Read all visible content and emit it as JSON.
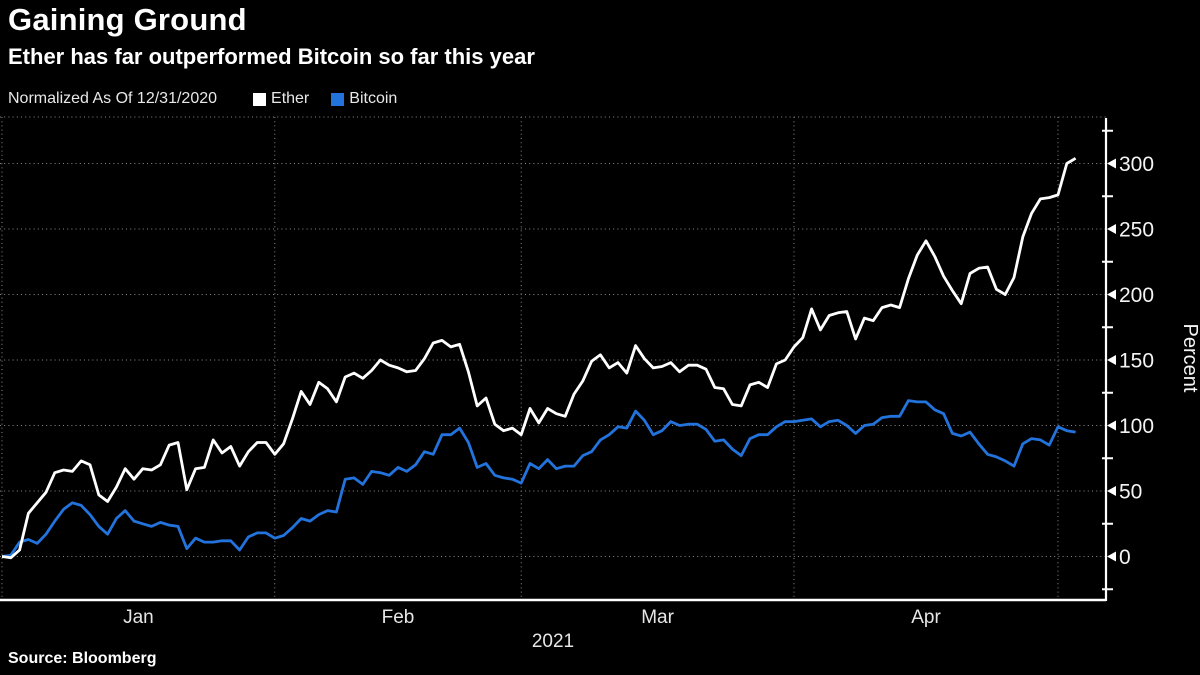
{
  "header": {
    "title": "Gaining Ground",
    "subtitle": "Ether has far outperformed Bitcoin so far this year"
  },
  "legend": {
    "note": "Normalized As Of 12/31/2020",
    "items": [
      {
        "label": "Ether",
        "color": "#ffffff"
      },
      {
        "label": "Bitcoin",
        "color": "#2373dd"
      }
    ]
  },
  "source": "Source: Bloomberg",
  "colors": {
    "background": "#000000",
    "axis": "#ffffff",
    "grid": "#8a8a8a",
    "ether": "#ffffff",
    "bitcoin": "#2373dd"
  },
  "chart_data": {
    "type": "line",
    "title": "Gaining Ground",
    "subtitle": "Ether has far outperformed Bitcoin so far this year",
    "note": "Normalized As Of 12/31/2020",
    "grid": "dotted",
    "legend_position": "top-left",
    "x_axis": {
      "tick_labels": [
        "Jan",
        "Feb",
        "Mar",
        "Apr"
      ],
      "year_label": "2021",
      "month_boundary_day_index": [
        0,
        31,
        59,
        90,
        120
      ],
      "total_days": 122,
      "start": "12/31/2020"
    },
    "y_axis": {
      "label": "Percent",
      "ticks": [
        0,
        50,
        100,
        150,
        200,
        250,
        300
      ],
      "minor_ticks": [
        -25,
        25,
        75,
        125,
        175,
        225,
        275,
        325
      ],
      "range": [
        -35,
        338
      ],
      "side": "right"
    },
    "series": [
      {
        "name": "Ether",
        "color": "#ffffff",
        "unit": "percent change since 12/31/2020",
        "values": [
          0,
          -1,
          5,
          33,
          41,
          49,
          64,
          66,
          65,
          73,
          70,
          47,
          42,
          53,
          67,
          59,
          67,
          66,
          70,
          85,
          87,
          51,
          67,
          68,
          89,
          79,
          84,
          69,
          80,
          87,
          87,
          78,
          86,
          105,
          126,
          116,
          133,
          128,
          118,
          137,
          140,
          136,
          142,
          150,
          146,
          144,
          141,
          142,
          151,
          163,
          165,
          160,
          162,
          141,
          115,
          121,
          101,
          96,
          98,
          93,
          113,
          102,
          113,
          109,
          107,
          124,
          134,
          149,
          154,
          144,
          148,
          140,
          161,
          151,
          144,
          145,
          148,
          141,
          146,
          146,
          143,
          129,
          128,
          116,
          115,
          131,
          133,
          129,
          147,
          150,
          160,
          167,
          189,
          173,
          184,
          186,
          187,
          166,
          182,
          180,
          190,
          192,
          190,
          212,
          230,
          241,
          229,
          214,
          203,
          193,
          216,
          220,
          221,
          204,
          200,
          213,
          244,
          262,
          273,
          274,
          276,
          300,
          304
        ]
      },
      {
        "name": "Bitcoin",
        "color": "#2373dd",
        "unit": "percent change since 12/31/2020",
        "values": [
          0,
          1,
          11,
          13,
          10,
          17,
          27,
          36,
          41,
          39,
          32,
          23,
          17,
          29,
          35,
          27,
          25,
          23,
          26,
          24,
          23,
          6,
          14,
          11,
          11,
          12,
          12,
          5,
          15,
          18,
          18,
          14,
          16,
          22,
          29,
          27,
          32,
          35,
          34,
          59,
          60,
          55,
          65,
          64,
          62,
          68,
          65,
          70,
          80,
          78,
          93,
          93,
          98,
          87,
          68,
          71,
          62,
          60,
          59,
          56,
          71,
          67,
          74,
          67,
          69,
          69,
          77,
          80,
          89,
          93,
          99,
          98,
          111,
          104,
          93,
          96,
          103,
          100,
          101,
          101,
          97,
          88,
          89,
          82,
          77,
          90,
          93,
          93,
          99,
          103,
          103,
          104,
          105,
          99,
          103,
          104,
          100,
          94,
          100,
          101,
          106,
          107,
          107,
          119,
          118,
          118,
          112,
          109,
          94,
          92,
          95,
          86,
          78,
          76,
          73,
          69,
          86,
          90,
          89,
          85,
          99,
          96,
          95
        ]
      }
    ]
  }
}
